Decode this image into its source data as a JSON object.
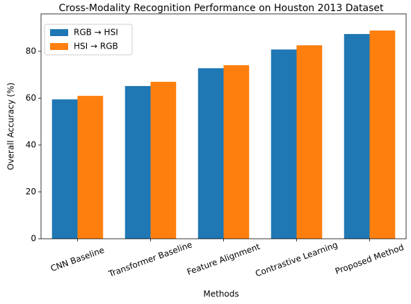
{
  "chart_data": {
    "type": "bar",
    "title": "Cross-Modality Recognition Performance on Houston 2013 Dataset",
    "xlabel": "Methods",
    "ylabel": "Overall Accuracy (%)",
    "categories": [
      "CNN Baseline",
      "Transformer Baseline",
      "Feature Alignment",
      "Contrastive Learning",
      "Proposed Method"
    ],
    "series": [
      {
        "name": "RGB → HSI",
        "color": "#1f77b4",
        "values": [
          59.5,
          65.2,
          72.8,
          80.8,
          87.4
        ]
      },
      {
        "name": "HSI → RGB",
        "color": "#ff7f0e",
        "values": [
          61.0,
          67.0,
          74.1,
          82.6,
          88.9
        ]
      }
    ],
    "ylim": [
      0,
      96
    ],
    "yticks": [
      0,
      20,
      40,
      60,
      80
    ],
    "grid": false,
    "legend": "upper left"
  }
}
